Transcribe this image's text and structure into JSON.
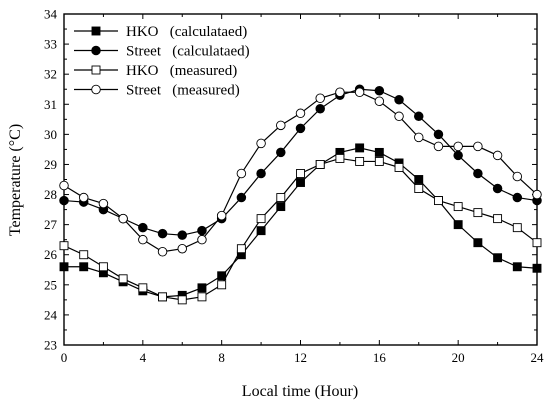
{
  "chart_data": {
    "type": "line",
    "title": "",
    "xlabel": "Local time (Hour)",
    "ylabel": "Temperature (°C)",
    "xlim": [
      0,
      24
    ],
    "ylim": [
      23,
      34
    ],
    "x_ticks": [
      0,
      4,
      8,
      12,
      16,
      20,
      24
    ],
    "y_ticks": [
      23,
      24,
      25,
      26,
      27,
      28,
      29,
      30,
      31,
      32,
      33,
      34
    ],
    "grid": false,
    "legend_position": "top-left",
    "x": [
      0,
      1,
      2,
      3,
      4,
      5,
      6,
      7,
      8,
      9,
      10,
      11,
      12,
      13,
      14,
      15,
      16,
      17,
      18,
      19,
      20,
      21,
      22,
      23,
      24
    ],
    "series": [
      {
        "name": "HKO   (calculataed)",
        "marker": "square-filled",
        "values": [
          25.6,
          25.6,
          25.4,
          25.1,
          24.8,
          24.6,
          24.65,
          24.9,
          25.3,
          26.0,
          26.8,
          27.6,
          28.4,
          29.0,
          29.4,
          29.55,
          29.4,
          29.05,
          28.5,
          27.8,
          27.0,
          26.4,
          25.9,
          25.6,
          25.55
        ]
      },
      {
        "name": "Street   (calculataed)",
        "marker": "circle-filled",
        "values": [
          27.8,
          27.75,
          27.5,
          27.2,
          26.9,
          26.7,
          26.65,
          26.8,
          27.2,
          27.9,
          28.7,
          29.4,
          30.2,
          30.85,
          31.3,
          31.5,
          31.45,
          31.15,
          30.6,
          30.0,
          29.3,
          28.7,
          28.2,
          27.9,
          27.8
        ]
      },
      {
        "name": "HKO   (measured)",
        "marker": "square-open",
        "values": [
          26.3,
          26.0,
          25.6,
          25.2,
          24.9,
          24.6,
          24.5,
          24.6,
          25.0,
          26.2,
          27.2,
          27.9,
          28.7,
          29.0,
          29.2,
          29.1,
          29.1,
          28.9,
          28.2,
          27.8,
          27.6,
          27.4,
          27.2,
          26.9,
          26.4
        ]
      },
      {
        "name": "Street   (measured)",
        "marker": "circle-open",
        "values": [
          28.3,
          27.9,
          27.7,
          27.2,
          26.5,
          26.1,
          26.2,
          26.5,
          27.3,
          28.7,
          29.7,
          30.3,
          30.7,
          31.2,
          31.4,
          31.4,
          31.1,
          30.6,
          29.9,
          29.6,
          29.6,
          29.6,
          29.3,
          28.6,
          28.0
        ]
      }
    ]
  }
}
